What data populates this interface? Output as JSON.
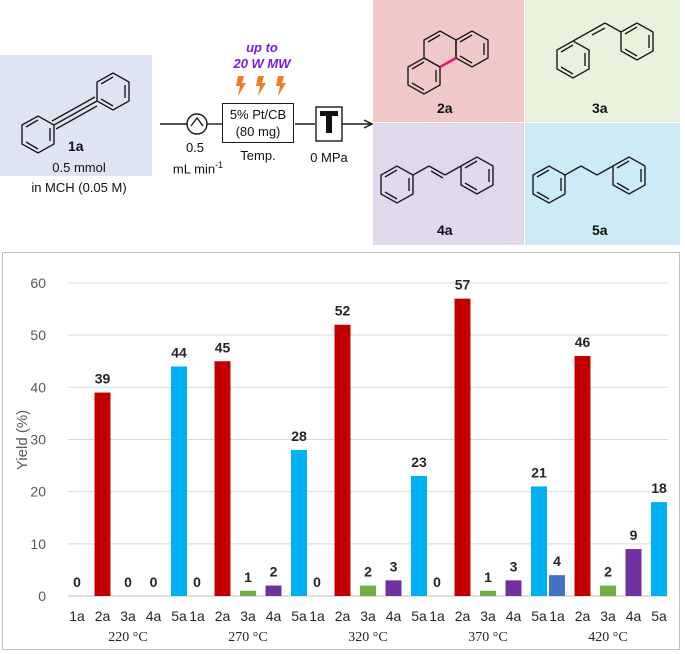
{
  "scheme": {
    "reactant": {
      "label": "1a",
      "amount": "0.5 mmol",
      "solvent": "in MCH (0.05 M)"
    },
    "pump": {
      "rate": "0.5",
      "unit": "mL min",
      "unit_exp": "-1"
    },
    "microwave": {
      "line1": "up to",
      "line2": "20 W MW"
    },
    "catalyst": {
      "line1": "5% Pt/CB",
      "line2": "(80 mg)",
      "below": "Temp."
    },
    "pressure": "0 MPa",
    "products": [
      {
        "label": "2a",
        "color": "#f0c8c8"
      },
      {
        "label": "3a",
        "color": "#e8f2dc"
      },
      {
        "label": "4a",
        "color": "#e2d8ec"
      },
      {
        "label": "5a",
        "color": "#cdeaf7"
      }
    ]
  },
  "chart_data": {
    "type": "bar",
    "ylabel": "Yield (%)",
    "ylim": [
      0,
      60
    ],
    "yticks": [
      0,
      10,
      20,
      30,
      40,
      50,
      60
    ],
    "grid": true,
    "compounds": [
      "1a",
      "2a",
      "3a",
      "4a",
      "5a"
    ],
    "colors": [
      "#4472c4",
      "#c00000",
      "#70ad47",
      "#7030a0",
      "#00b0f0"
    ],
    "groups": [
      {
        "temperature": "220 °C",
        "values": [
          0,
          39,
          0,
          0,
          44
        ]
      },
      {
        "temperature": "270 °C",
        "values": [
          0,
          45,
          1,
          2,
          28
        ]
      },
      {
        "temperature": "320 °C",
        "values": [
          0,
          52,
          2,
          3,
          23
        ]
      },
      {
        "temperature": "370 °C",
        "values": [
          0,
          57,
          1,
          3,
          21
        ]
      },
      {
        "temperature": "420 °C",
        "values": [
          4,
          46,
          2,
          9,
          18
        ]
      }
    ]
  }
}
